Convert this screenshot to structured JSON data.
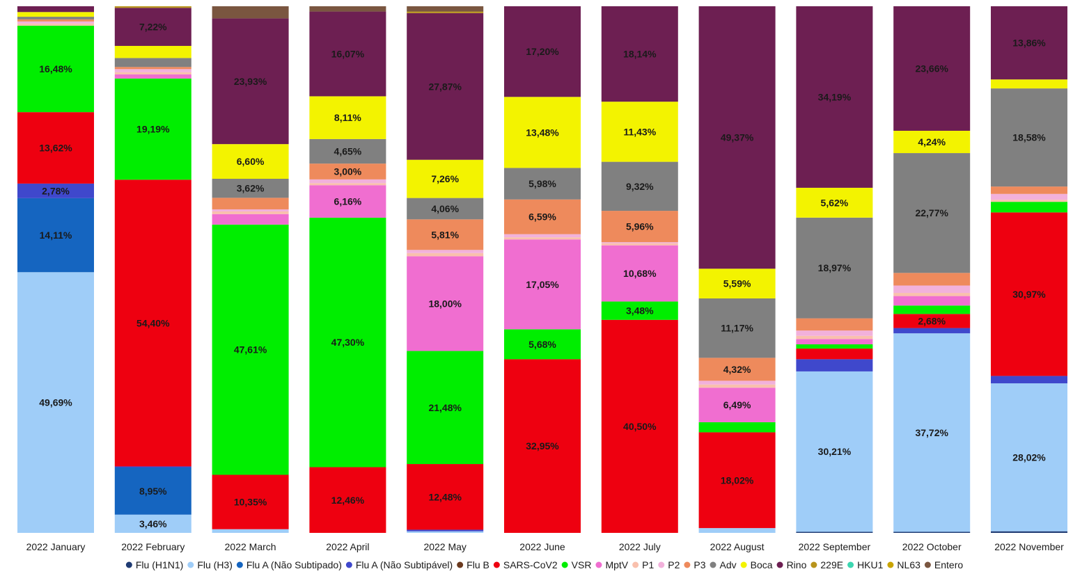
{
  "chart_data": {
    "type": "bar",
    "stacked": true,
    "percent": true,
    "title": "",
    "xlabel": "",
    "ylabel": "",
    "ylim": [
      0,
      100
    ],
    "grid": false,
    "legend_position": "bottom",
    "categories": [
      "2022 January",
      "2022 February",
      "2022 March",
      "2022 April",
      "2022 May",
      "2022 June",
      "2022 July",
      "2022 August",
      "2022 September",
      "2022 October",
      "2022 November"
    ],
    "series": [
      {
        "name": "Flu (H1N1)",
        "color": "#1f3b73",
        "values": [
          0,
          0,
          0,
          0,
          0,
          0,
          0,
          0,
          0.2,
          0.2,
          0.3
        ],
        "labels": [
          "",
          "",
          "",
          "",
          "",
          "",
          "",
          "",
          "",
          "",
          ""
        ]
      },
      {
        "name": "Flu (H3)",
        "color": "#9fcdf8",
        "values": [
          49.69,
          3.46,
          0.7,
          0,
          0.3,
          0,
          0,
          0.9,
          30.21,
          37.72,
          28.02
        ],
        "labels": [
          "49,69%",
          "3,46%",
          "",
          "",
          "",
          "",
          "",
          "",
          "30,21%",
          "37,72%",
          "28,02%"
        ]
      },
      {
        "name": "Flu A (Não Subtipado)",
        "color": "#1565c0",
        "values": [
          14.11,
          8.95,
          0,
          0,
          0,
          0,
          0,
          0,
          0,
          0,
          0
        ],
        "labels": [
          "14,11%",
          "8,95%",
          "",
          "",
          "",
          "",
          "",
          "",
          "",
          "",
          ""
        ]
      },
      {
        "name": "Flu A (Não Subtipável)",
        "color": "#3f48cc",
        "values": [
          2.78,
          0.2,
          0,
          0,
          0.3,
          0,
          0,
          0,
          2.3,
          1.0,
          1.4
        ],
        "labels": [
          "2,78%",
          "",
          "",
          "",
          "",
          "",
          "",
          "",
          "",
          "",
          ""
        ]
      },
      {
        "name": "Flu B",
        "color": "#6b3a1f",
        "values": [
          0,
          0,
          0,
          0,
          0,
          0,
          0,
          0,
          0,
          0,
          0
        ],
        "labels": [
          "",
          "",
          "",
          "",
          "",
          "",
          "",
          "",
          "",
          "",
          ""
        ]
      },
      {
        "name": "SARS-CoV2",
        "color": "#ee0010",
        "values": [
          13.62,
          54.4,
          10.35,
          12.46,
          12.48,
          32.95,
          40.5,
          18.02,
          2.0,
          2.68,
          30.97
        ],
        "labels": [
          "13,62%",
          "54,40%",
          "10,35%",
          "12,46%",
          "12,48%",
          "32,95%",
          "40,50%",
          "18,02%",
          "",
          "2,68%",
          "30,97%"
        ]
      },
      {
        "name": "VSR",
        "color": "#00ee00",
        "values": [
          16.48,
          19.19,
          47.61,
          47.3,
          21.48,
          5.68,
          3.48,
          1.9,
          0.8,
          1.6,
          2.0
        ],
        "labels": [
          "16,48%",
          "19,19%",
          "47,61%",
          "47,30%",
          "21,48%",
          "5,68%",
          "3,48%",
          "",
          "",
          "",
          ""
        ]
      },
      {
        "name": "MptV",
        "color": "#f06ed0",
        "values": [
          0,
          0.8,
          2.0,
          6.16,
          18.0,
          17.05,
          10.68,
          6.49,
          1.0,
          1.8,
          0
        ],
        "labels": [
          "",
          "",
          "",
          "6,16%",
          "18,00%",
          "17,05%",
          "10,68%",
          "6,49%",
          "",
          "",
          ""
        ]
      },
      {
        "name": "P1",
        "color": "#f9c0ad",
        "values": [
          0.4,
          0.4,
          0.5,
          0.4,
          0.6,
          0.4,
          0.4,
          0.6,
          0.6,
          0.6,
          0.4
        ],
        "labels": [
          "",
          "",
          "",
          "",
          "",
          "",
          "",
          "",
          "",
          "",
          ""
        ]
      },
      {
        "name": "P2",
        "color": "#f2b1db",
        "values": [
          0.4,
          0.6,
          0.4,
          0.7,
          0.6,
          0.6,
          0.2,
          0.7,
          1.0,
          1.4,
          1.1
        ],
        "labels": [
          "",
          "",
          "",
          "",
          "",
          "",
          "",
          "",
          "",
          "",
          ""
        ]
      },
      {
        "name": "P3",
        "color": "#ee8a5c",
        "values": [
          0.4,
          0.4,
          2.2,
          3.0,
          5.81,
          6.59,
          5.96,
          4.32,
          2.3,
          2.4,
          1.4
        ],
        "labels": [
          "",
          "",
          "",
          "3,00%",
          "5,81%",
          "6,59%",
          "5,96%",
          "4,32%",
          "",
          "",
          ""
        ]
      },
      {
        "name": "Adv",
        "color": "#808080",
        "values": [
          0.5,
          1.7,
          3.62,
          4.65,
          4.06,
          5.98,
          9.32,
          11.17,
          18.97,
          22.77,
          18.58
        ],
        "labels": [
          "",
          "",
          "3,62%",
          "4,65%",
          "4,06%",
          "5,98%",
          "9,32%",
          "11,17%",
          "18,97%",
          "22,77%",
          "18,58%"
        ]
      },
      {
        "name": "Boca",
        "color": "#f3f300",
        "values": [
          0.9,
          2.3,
          6.6,
          8.11,
          7.26,
          13.48,
          11.43,
          5.59,
          5.62,
          4.24,
          1.7
        ],
        "labels": [
          "",
          "",
          "6,60%",
          "8,11%",
          "7,26%",
          "13,48%",
          "11,43%",
          "5,59%",
          "5,62%",
          "4,24%",
          ""
        ]
      },
      {
        "name": "Rino",
        "color": "#6d1f52",
        "values": [
          1.1,
          7.22,
          23.93,
          16.07,
          27.87,
          17.2,
          18.14,
          49.37,
          34.19,
          23.66,
          13.86
        ],
        "labels": [
          "",
          "7,22%",
          "23,93%",
          "16,07%",
          "27,87%",
          "17,20%",
          "18,14%",
          "49,37%",
          "34,19%",
          "23,66%",
          "13,86%"
        ]
      },
      {
        "name": "229E",
        "color": "#b8941c",
        "values": [
          0,
          0.3,
          0,
          0,
          0.3,
          0,
          0,
          0,
          0,
          0,
          0
        ],
        "labels": [
          "",
          "",
          "",
          "",
          "",
          "",
          "",
          "",
          "",
          "",
          ""
        ]
      },
      {
        "name": "HKU1",
        "color": "#3cd6b0",
        "values": [
          0,
          0,
          0,
          0,
          0,
          0,
          0,
          0,
          0,
          0,
          0
        ],
        "labels": [
          "",
          "",
          "",
          "",
          "",
          "",
          "",
          "",
          "",
          "",
          ""
        ]
      },
      {
        "name": "NL63",
        "color": "#c9a400",
        "values": [
          0,
          0,
          0,
          0,
          0,
          0,
          0,
          0,
          0,
          0,
          0
        ],
        "labels": [
          "",
          "",
          "",
          "",
          "",
          "",
          "",
          "",
          "",
          "",
          ""
        ]
      },
      {
        "name": "Entero",
        "color": "#7a5640",
        "values": [
          0,
          0,
          2.3,
          1.0,
          1.0,
          0,
          0,
          0,
          0,
          0,
          0
        ],
        "labels": [
          "",
          "",
          "",
          "",
          "",
          "",
          "",
          "",
          "",
          "",
          ""
        ]
      }
    ]
  }
}
